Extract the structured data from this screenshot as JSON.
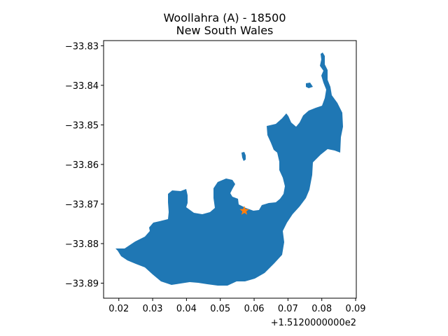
{
  "title": {
    "line1": "Woollahra (A) - 18500",
    "line2": "New South Wales"
  },
  "colors": {
    "region_fill": "#1f77b4",
    "marker": "#ff7f0e"
  },
  "map_data": {
    "region_name": "Woollahra (A)",
    "region_code": "18500",
    "state": "New South Wales",
    "x_offset_label": "+1.5120000000e2",
    "xlim": [
      0.0155,
      0.0902
    ],
    "ylim": [
      -33.8938,
      -33.8287
    ],
    "x_ticks": [
      {
        "value": 0.02,
        "label": "0.02"
      },
      {
        "value": 0.03,
        "label": "0.03"
      },
      {
        "value": 0.04,
        "label": "0.04"
      },
      {
        "value": 0.05,
        "label": "0.05"
      },
      {
        "value": 0.06,
        "label": "0.06"
      },
      {
        "value": 0.07,
        "label": "0.07"
      },
      {
        "value": 0.08,
        "label": "0.08"
      },
      {
        "value": 0.09,
        "label": "0.09"
      }
    ],
    "y_ticks": [
      {
        "value": -33.83,
        "label": "−33.83"
      },
      {
        "value": -33.84,
        "label": "−33.84"
      },
      {
        "value": -33.85,
        "label": "−33.85"
      },
      {
        "value": -33.86,
        "label": "−33.86"
      },
      {
        "value": -33.87,
        "label": "−33.87"
      },
      {
        "value": -33.88,
        "label": "−33.88"
      },
      {
        "value": -33.89,
        "label": "−33.89"
      }
    ],
    "marker_point": {
      "x": 0.0571,
      "y": -33.8717
    }
  }
}
